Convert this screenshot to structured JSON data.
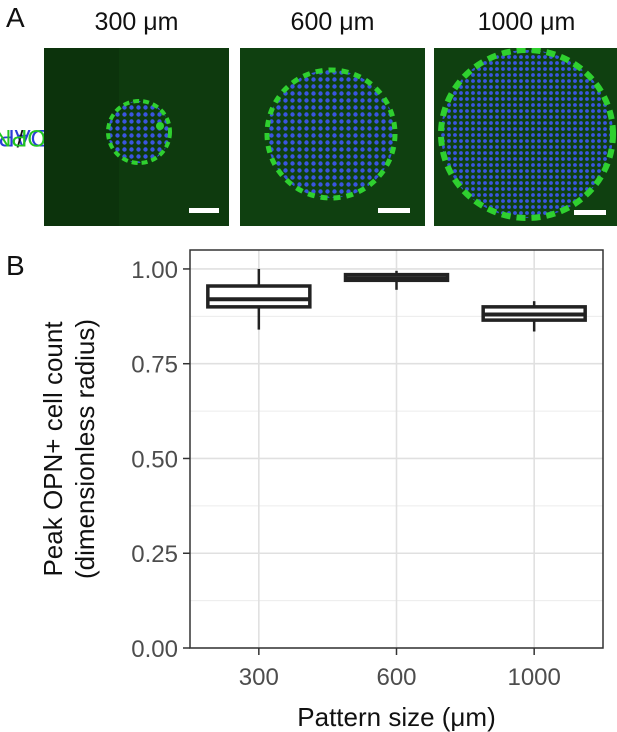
{
  "panel_a": {
    "letter": "A",
    "stain_label": {
      "dapi": "DAPI",
      "sep": "/",
      "opn": "OPN"
    },
    "colors": {
      "dapi": "#2b3dd6",
      "opn": "#22c522",
      "background": "#0d3a0d"
    },
    "images": [
      {
        "title": "300 μm",
        "size_um": 300
      },
      {
        "title": "600 μm",
        "size_um": 600
      },
      {
        "title": "1000 μm",
        "size_um": 1000
      }
    ]
  },
  "panel_b": {
    "letter": "B"
  },
  "chart_data": {
    "type": "box",
    "xlabel": "Pattern size (μm)",
    "ylabel_lines": [
      "Peak OPN+ cell count",
      "(dimensionless radius)"
    ],
    "categories": [
      "300",
      "600",
      "1000"
    ],
    "ylim": [
      0,
      1.05
    ],
    "yticks": [
      0.0,
      0.25,
      0.5,
      0.75,
      1.0
    ],
    "ytick_labels": [
      "0.00",
      "0.25",
      "0.50",
      "0.75",
      "1.00"
    ],
    "grid": true,
    "boxes": [
      {
        "category": "300",
        "min": 0.84,
        "q1": 0.9,
        "median": 0.92,
        "q3": 0.955,
        "max": 1.0
      },
      {
        "category": "600",
        "min": 0.945,
        "q1": 0.97,
        "median": 0.975,
        "q3": 0.985,
        "max": 0.995
      },
      {
        "category": "1000",
        "min": 0.835,
        "q1": 0.865,
        "median": 0.88,
        "q3": 0.9,
        "max": 0.915
      }
    ]
  }
}
